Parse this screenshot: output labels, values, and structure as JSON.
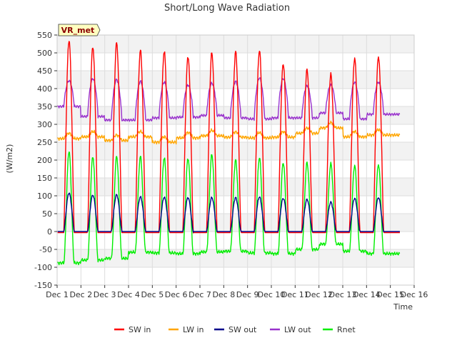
{
  "chart_data": {
    "type": "line",
    "title": "Short/Long Wave Radiation",
    "xlabel": "Time",
    "ylabel": "(W/m2)",
    "site_label": "VR_met",
    "ylim": [
      -150,
      550
    ],
    "xlim": [
      0,
      15
    ],
    "yticks": [
      -150,
      -100,
      -50,
      0,
      50,
      100,
      150,
      200,
      250,
      300,
      350,
      400,
      450,
      500,
      550
    ],
    "xticks": [
      {
        "day": 0,
        "label": "Dec 1"
      },
      {
        "day": 1,
        "label": "Dec 2"
      },
      {
        "day": 2,
        "label": "Dec 3"
      },
      {
        "day": 3,
        "label": "Dec 4"
      },
      {
        "day": 4,
        "label": "Dec 5"
      },
      {
        "day": 5,
        "label": "Dec 6"
      },
      {
        "day": 6,
        "label": "Dec 7"
      },
      {
        "day": 7,
        "label": "Dec 8"
      },
      {
        "day": 8,
        "label": "Dec 9"
      },
      {
        "day": 9,
        "label": "Dec 10"
      },
      {
        "day": 10,
        "label": "Dec 11"
      },
      {
        "day": 11,
        "label": "Dec 12"
      },
      {
        "day": 12,
        "label": "Dec 13"
      },
      {
        "day": 13,
        "label": "Dec 14"
      },
      {
        "day": 14,
        "label": "Dec 15"
      },
      {
        "day": 15,
        "label": "Dec 16"
      }
    ],
    "grid": true,
    "legend_position": "bottom",
    "data_range_days": [
      0.0,
      14.4
    ],
    "daily_peaks": {
      "days": [
        "Dec 1",
        "Dec 2",
        "Dec 3",
        "Dec 4",
        "Dec 5",
        "Dec 6",
        "Dec 7",
        "Dec 8",
        "Dec 9",
        "Dec 10",
        "Dec 11",
        "Dec 12",
        "Dec 13",
        "Dec 14"
      ],
      "sw_in_peak": [
        535,
        517,
        528,
        507,
        505,
        490,
        500,
        503,
        507,
        470,
        453,
        440,
        485,
        490
      ],
      "lw_in_mean": [
        260,
        265,
        255,
        265,
        250,
        262,
        268,
        264,
        262,
        264,
        275,
        290,
        265,
        270
      ],
      "sw_out_peak": [
        108,
        102,
        103,
        97,
        96,
        95,
        95,
        95,
        97,
        93,
        90,
        82,
        93,
        95
      ],
      "lw_out_peak": [
        422,
        428,
        425,
        420,
        418,
        410,
        415,
        420,
        430,
        428,
        408,
        410,
        418,
        418
      ],
      "lw_out_night": [
        350,
        322,
        312,
        312,
        318,
        320,
        325,
        318,
        315,
        318,
        318,
        332,
        315,
        328
      ],
      "rnet_peak": [
        225,
        210,
        210,
        210,
        207,
        205,
        215,
        200,
        207,
        193,
        193,
        190,
        185,
        188
      ],
      "rnet_night": [
        -88,
        -80,
        -75,
        -58,
        -60,
        -62,
        -57,
        -55,
        -60,
        -62,
        -50,
        -35,
        -55,
        -62
      ]
    },
    "series": [
      {
        "name": "SW in",
        "color": "#ff0000"
      },
      {
        "name": "LW in",
        "color": "#ffa500"
      },
      {
        "name": "SW out",
        "color": "#00008b"
      },
      {
        "name": "LW out",
        "color": "#9932cc"
      },
      {
        "name": "Rnet",
        "color": "#00ee00"
      }
    ]
  }
}
